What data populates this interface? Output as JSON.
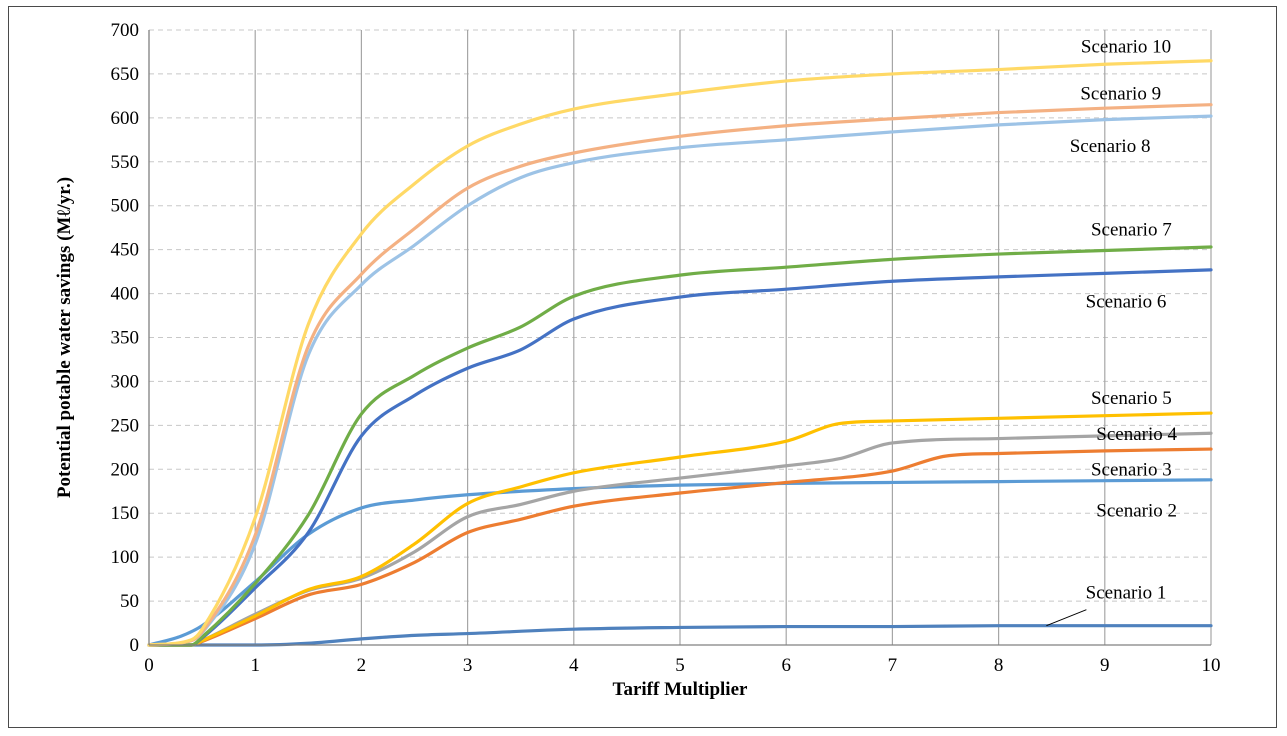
{
  "chart_data": {
    "type": "line",
    "title": "",
    "xlabel": "Tariff Multiplier",
    "ylabel": "Potential potable water savings (Mℓ/yr.)",
    "xlim": [
      0,
      10
    ],
    "ylim": [
      0,
      700
    ],
    "x_ticks": [
      "0",
      "1",
      "2",
      "3",
      "4",
      "5",
      "6",
      "7",
      "8",
      "9",
      "10"
    ],
    "y_ticks": [
      "0",
      "50",
      "100",
      "150",
      "200",
      "250",
      "300",
      "350",
      "400",
      "450",
      "500",
      "550",
      "600",
      "650",
      "700"
    ],
    "grid": {
      "vertical": "solid",
      "horizontal": "dashed"
    },
    "legend": "inline labels beside each curve",
    "series": [
      {
        "name": "Scenario 1",
        "color": "#4f81bd",
        "x": [
          0,
          0.5,
          1,
          1.5,
          2,
          2.5,
          3,
          4,
          5,
          6,
          7,
          8,
          9,
          10
        ],
        "y": [
          0,
          0,
          0,
          2,
          7,
          11,
          13,
          18,
          20,
          21,
          21,
          22,
          22,
          22
        ]
      },
      {
        "name": "Scenario 2",
        "color": "#5b9bd5",
        "x": [
          0,
          0.3,
          0.5,
          1,
          1.5,
          2,
          2.5,
          3,
          4,
          5,
          6,
          7,
          8,
          9,
          10
        ],
        "y": [
          0,
          10,
          22,
          72,
          126,
          156,
          165,
          171,
          178,
          182,
          184,
          185,
          186,
          187,
          188
        ]
      },
      {
        "name": "Scenario 3",
        "color": "#ed7d31",
        "x": [
          0,
          0.4,
          0.5,
          1,
          1.5,
          2,
          2.5,
          3,
          3.5,
          4,
          5,
          6,
          7,
          7.5,
          8,
          9,
          10
        ],
        "y": [
          0,
          0,
          4,
          30,
          57,
          69,
          94,
          128,
          143,
          158,
          173,
          185,
          198,
          215,
          218,
          221,
          223
        ]
      },
      {
        "name": "Scenario 4",
        "color": "#a5a5a5",
        "x": [
          0,
          0.4,
          0.5,
          1,
          1.5,
          2,
          2.5,
          3,
          3.5,
          4,
          5,
          6,
          6.5,
          7,
          8,
          9,
          10
        ],
        "y": [
          0,
          0,
          5,
          35,
          62,
          76,
          106,
          146,
          160,
          175,
          190,
          204,
          212,
          230,
          235,
          238,
          241
        ]
      },
      {
        "name": "Scenario 5",
        "color": "#ffc000",
        "x": [
          0,
          0.4,
          0.5,
          1,
          1.5,
          2,
          2.5,
          3,
          3.5,
          4,
          5,
          6,
          6.5,
          7,
          8,
          9,
          10
        ],
        "y": [
          0,
          0,
          5,
          33,
          63,
          78,
          115,
          161,
          180,
          196,
          214,
          232,
          252,
          255,
          258,
          261,
          264
        ]
      },
      {
        "name": "Scenario 6",
        "color": "#4472c4",
        "x": [
          0,
          0.4,
          0.5,
          1,
          1.5,
          2,
          2.5,
          3,
          3.5,
          4,
          5,
          6,
          7,
          8,
          9,
          10
        ],
        "y": [
          0,
          0,
          8,
          65,
          128,
          238,
          284,
          315,
          336,
          371,
          396,
          405,
          414,
          419,
          423,
          427
        ]
      },
      {
        "name": "Scenario 7",
        "color": "#70ad47",
        "x": [
          0,
          0.4,
          0.5,
          1,
          1.5,
          2,
          2.5,
          3,
          3.5,
          4,
          5,
          6,
          7,
          8,
          9,
          10
        ],
        "y": [
          0,
          0,
          9,
          70,
          148,
          263,
          307,
          338,
          362,
          397,
          421,
          430,
          439,
          445,
          449,
          453
        ]
      },
      {
        "name": "Scenario 8",
        "color": "#9dc3e6",
        "x": [
          0,
          0.4,
          0.5,
          1,
          1.5,
          2,
          2.5,
          3,
          3.5,
          4,
          5,
          6,
          7,
          8,
          9,
          10
        ],
        "y": [
          0,
          5,
          14,
          115,
          330,
          410,
          455,
          500,
          532,
          549,
          566,
          575,
          584,
          592,
          598,
          602
        ]
      },
      {
        "name": "Scenario 9",
        "color": "#f4b183",
        "x": [
          0,
          0.4,
          0.5,
          1,
          1.5,
          2,
          2.5,
          3,
          3.5,
          4,
          5,
          6,
          7,
          8,
          9,
          10
        ],
        "y": [
          0,
          5,
          15,
          125,
          340,
          422,
          474,
          520,
          545,
          560,
          579,
          591,
          599,
          606,
          611,
          615
        ]
      },
      {
        "name": "Scenario 10",
        "color": "#ffd966",
        "x": [
          0,
          0.4,
          0.5,
          1,
          1.5,
          2,
          2.5,
          3,
          3.5,
          4,
          5,
          6,
          7,
          8,
          9,
          10
        ],
        "y": [
          0,
          6,
          18,
          145,
          365,
          468,
          525,
          568,
          593,
          610,
          628,
          642,
          650,
          655,
          661,
          665
        ]
      }
    ]
  },
  "annotations": [
    {
      "text": "Scenario 1",
      "series": "Scenario 1",
      "x": 9.2,
      "y": 60,
      "pointer": {
        "x": 8.45,
        "y": 22
      }
    },
    {
      "text": "Scenario 2",
      "series": "Scenario 2",
      "x": 9.3,
      "y": 153
    },
    {
      "text": "Scenario 3",
      "series": "Scenario 3",
      "x": 9.25,
      "y": 200
    },
    {
      "text": "Scenario 4",
      "series": "Scenario 4",
      "x": 9.3,
      "y": 240
    },
    {
      "text": "Scenario 5",
      "series": "Scenario 5",
      "x": 9.25,
      "y": 281
    },
    {
      "text": "Scenario 6",
      "series": "Scenario 6",
      "x": 9.2,
      "y": 391
    },
    {
      "text": "Scenario 7",
      "series": "Scenario 7",
      "x": 9.25,
      "y": 473
    },
    {
      "text": "Scenario 8",
      "series": "Scenario 8",
      "x": 9.05,
      "y": 568
    },
    {
      "text": "Scenario 9",
      "series": "Scenario 9",
      "x": 9.15,
      "y": 628
    },
    {
      "text": "Scenario 10",
      "series": "Scenario 10",
      "x": 9.2,
      "y": 681
    }
  ]
}
